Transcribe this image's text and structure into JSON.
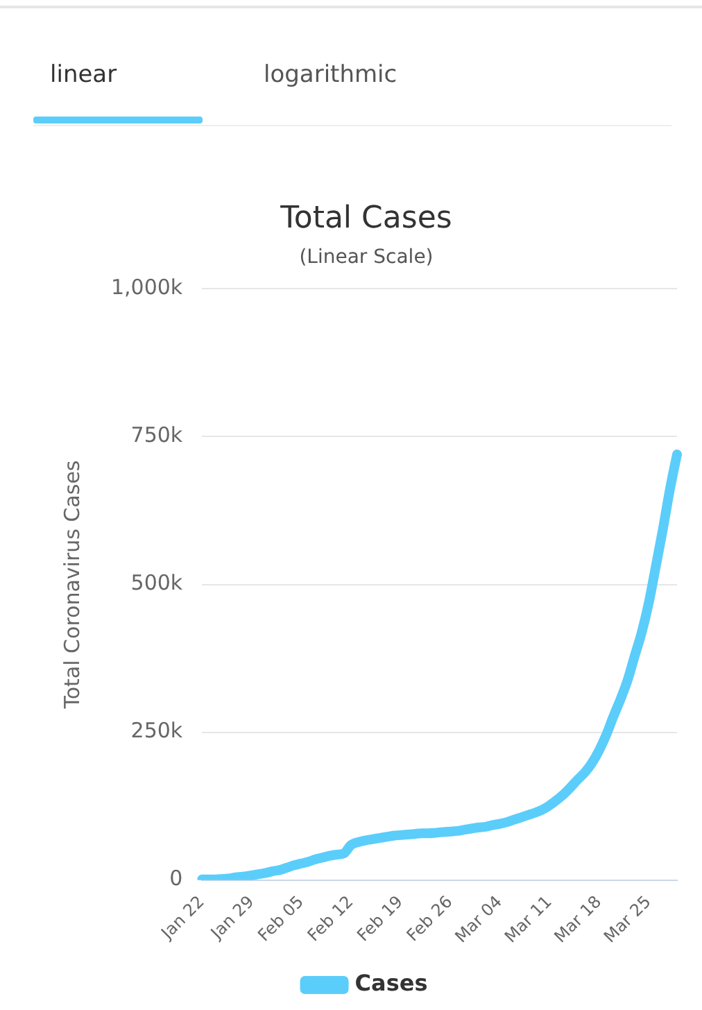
{
  "chart_data": {
    "type": "line",
    "title": "Total Cases",
    "subtitle": "(Linear Scale)",
    "ylabel": "Total Coronavirus Cases",
    "annotations": [
      "linear",
      "logarithmic"
    ],
    "categories": [
      "Jan 22",
      null,
      null,
      null,
      null,
      null,
      null,
      "Jan 29",
      null,
      null,
      null,
      null,
      null,
      null,
      "Feb 05",
      null,
      null,
      null,
      null,
      null,
      null,
      "Feb 12",
      null,
      null,
      null,
      null,
      null,
      null,
      "Feb 19",
      null,
      null,
      null,
      null,
      null,
      null,
      "Feb 26",
      null,
      null,
      null,
      null,
      null,
      null,
      "Mar 04",
      null,
      null,
      null,
      null,
      null,
      null,
      "Mar 11",
      null,
      null,
      null,
      null,
      null,
      null,
      "Mar 18",
      null,
      null,
      null,
      null,
      null,
      null,
      "Mar 25",
      null,
      null,
      null,
      null
    ],
    "series": [
      {
        "name": "Cases",
        "color": "#5bcdfa",
        "values": [
          1000,
          1000,
          1000,
          2000,
          3000,
          5000,
          6000,
          8000,
          10000,
          12000,
          15000,
          17000,
          21000,
          25000,
          28000,
          31000,
          35000,
          38000,
          41000,
          43000,
          45000,
          59000,
          64000,
          67000,
          69000,
          71000,
          73000,
          75000,
          76000,
          77000,
          78000,
          79000,
          79000,
          80000,
          81000,
          82000,
          83000,
          85000,
          87000,
          89000,
          90000,
          93000,
          95000,
          98000,
          102000,
          106000,
          110000,
          114000,
          119000,
          126000,
          135000,
          145000,
          157000,
          170000,
          182000,
          198000,
          219000,
          245000,
          276000,
          305000,
          337000,
          378000,
          418000,
          468000,
          530000,
          593000,
          661000,
          720000
        ]
      }
    ],
    "ylim": [
      0,
      1000000
    ],
    "yticks": [
      0,
      {
        "value": 250000,
        "label": "250k"
      },
      {
        "value": 500000,
        "label": "500k"
      },
      {
        "value": 750000,
        "label": "750k"
      },
      {
        "value": 1000000,
        "label": "1,000k"
      }
    ],
    "grid": "y",
    "legend": "bottom",
    "marker": "none",
    "line_style": "solid"
  }
}
